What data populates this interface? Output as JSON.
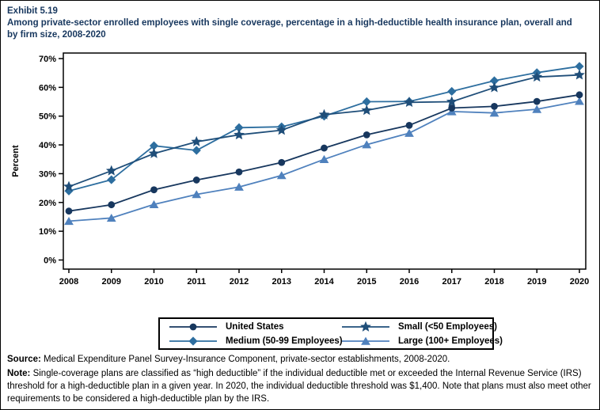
{
  "page": {
    "exhibit_label": "Exhibit 5.19",
    "title": "Among private-sector enrolled employees with single coverage, percentage in a high-deductible health insurance plan, overall and by firm size, 2008-2020"
  },
  "chart_data": {
    "type": "line",
    "title": "Among private-sector enrolled employees with single coverage, percentage in a high-deductible health insurance plan, overall and by firm size, 2008-2020",
    "xlabel": "",
    "ylabel": "Percent",
    "ylim": [
      0,
      70
    ],
    "ytick_step": 10,
    "ytick_suffix": "%",
    "grid": false,
    "legend_position": "bottom",
    "x": [
      "2008",
      "2009",
      "2010",
      "2011",
      "2012",
      "2013",
      "2014",
      "2015",
      "2016",
      "2017",
      "2018",
      "2019",
      "2020"
    ],
    "series": [
      {
        "name": "United States",
        "marker": "circle",
        "color": "#17375E",
        "values": [
          17.0,
          19.2,
          24.4,
          27.8,
          30.6,
          33.9,
          38.9,
          43.5,
          46.8,
          52.8,
          53.4,
          55.1,
          57.4
        ]
      },
      {
        "name": "Small (<50 Employees)",
        "marker": "star",
        "color": "#1F4E79",
        "values": [
          25.5,
          31.0,
          37.0,
          41.1,
          43.5,
          45.1,
          50.5,
          52.0,
          54.8,
          55.0,
          59.9,
          63.6,
          64.3
        ]
      },
      {
        "name": "Medium (50-99 Employees)",
        "marker": "diamond",
        "color": "#2D6E9F",
        "values": [
          24.0,
          27.9,
          39.7,
          38.1,
          46.0,
          46.3,
          50.0,
          55.0,
          55.1,
          58.6,
          62.3,
          65.1,
          67.3
        ]
      },
      {
        "name": "Large (100+ Employees)",
        "marker": "triangle",
        "color": "#4F81BD",
        "values": [
          13.5,
          14.6,
          19.3,
          22.8,
          25.4,
          29.4,
          35.0,
          40.1,
          44.1,
          51.6,
          51.1,
          52.4,
          55.2
        ]
      }
    ]
  },
  "footnotes": {
    "source_label": "Source:",
    "source_text": " Medical Expenditure Panel Survey-Insurance Component, private-sector establishments, 2008-2020.",
    "note_label": "Note:",
    "note_text": " Single-coverage plans are classified as “high deductible” if the individual deductible met or exceeded the Internal Revenue Service (IRS) threshold for a high-deductible plan in a given year. In 2020, the individual deductible threshold was $1,400. Note that plans must also meet other requirements to be considered a high-deductible plan by the IRS."
  }
}
